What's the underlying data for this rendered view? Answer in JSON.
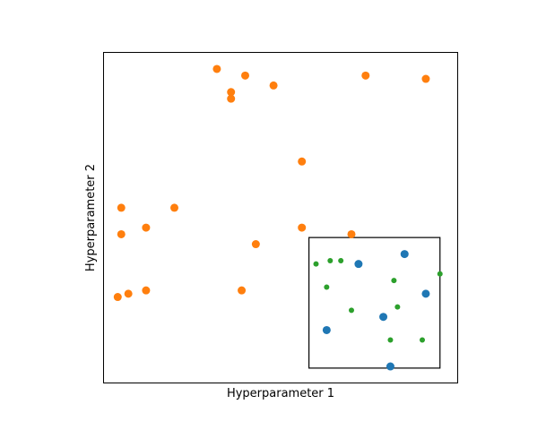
{
  "chart_data": {
    "type": "scatter",
    "xlabel": "Hyperparameter 1",
    "ylabel": "Hyperparameter 2",
    "xlim": [
      0,
      1
    ],
    "ylim": [
      0,
      1
    ],
    "x_ticks": "none",
    "y_ticks": "none",
    "grid": false,
    "legend": "none",
    "series": [
      {
        "color": "#ff7f0e",
        "marker_size": "large",
        "points": [
          [
            0.32,
            0.95
          ],
          [
            0.4,
            0.93
          ],
          [
            0.36,
            0.88
          ],
          [
            0.36,
            0.86
          ],
          [
            0.48,
            0.9
          ],
          [
            0.74,
            0.93
          ],
          [
            0.91,
            0.92
          ],
          [
            0.56,
            0.67
          ],
          [
            0.05,
            0.53
          ],
          [
            0.2,
            0.53
          ],
          [
            0.05,
            0.45
          ],
          [
            0.12,
            0.47
          ],
          [
            0.56,
            0.47
          ],
          [
            0.7,
            0.45
          ],
          [
            0.43,
            0.42
          ],
          [
            0.07,
            0.27
          ],
          [
            0.12,
            0.28
          ],
          [
            0.04,
            0.26
          ],
          [
            0.39,
            0.28
          ]
        ]
      },
      {
        "color": "#1f77b4",
        "marker_size": "large",
        "points": [
          [
            0.85,
            0.39
          ],
          [
            0.72,
            0.36
          ],
          [
            0.91,
            0.27
          ],
          [
            0.79,
            0.2
          ],
          [
            0.63,
            0.16
          ],
          [
            0.81,
            0.05
          ]
        ]
      },
      {
        "color": "#2ca02c",
        "marker_size": "small",
        "points": [
          [
            0.6,
            0.36
          ],
          [
            0.64,
            0.37
          ],
          [
            0.67,
            0.37
          ],
          [
            0.95,
            0.33
          ],
          [
            0.82,
            0.31
          ],
          [
            0.63,
            0.29
          ],
          [
            0.83,
            0.23
          ],
          [
            0.7,
            0.22
          ],
          [
            0.81,
            0.13
          ],
          [
            0.9,
            0.13
          ]
        ]
      }
    ],
    "annotations": [
      {
        "type": "rectangle",
        "x0": 0.58,
        "x1": 0.95,
        "y0": 0.045,
        "y1": 0.44,
        "edgecolor": "#000000",
        "fill": "none"
      }
    ]
  }
}
